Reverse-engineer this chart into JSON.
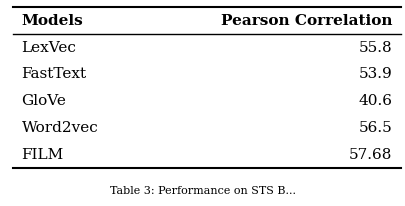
{
  "col1_header": "Models",
  "col2_header": "Pearson Correlation",
  "rows": [
    [
      "LexVec",
      "55.8"
    ],
    [
      "FastText",
      "53.9"
    ],
    [
      "GloVe",
      "40.6"
    ],
    [
      "Word2vec",
      "56.5"
    ],
    [
      "FILM",
      "57.68"
    ]
  ],
  "background_color": "#ffffff",
  "header_fontsize": 11,
  "cell_fontsize": 11,
  "caption_fontsize": 8
}
